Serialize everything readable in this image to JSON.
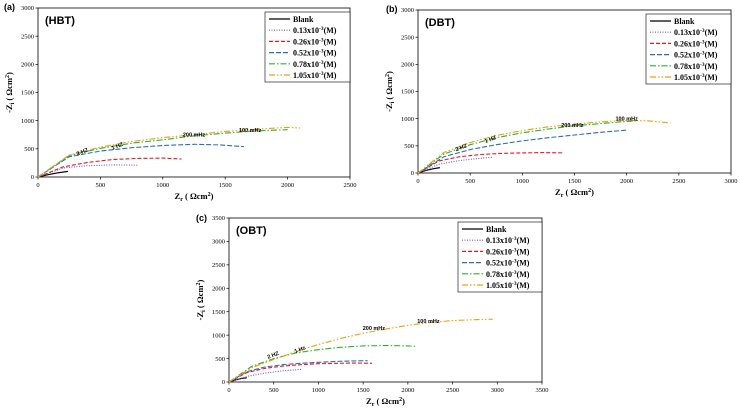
{
  "chart_data": [
    {
      "type": "line",
      "panel_label": "(a)",
      "title": "(HBT)",
      "xlabel": "Zr (Ωcm²)",
      "ylabel": "-Zi (Ωcm²)",
      "xlim": [
        0,
        2500
      ],
      "ylim": [
        0,
        3000
      ],
      "xticks": [
        "0",
        "500",
        "1000",
        "1500",
        "2000",
        "2500"
      ],
      "yticks": [
        "0",
        "500",
        "1000",
        "1500",
        "2000",
        "2500",
        "3000"
      ],
      "annotations": [
        {
          "text": "2 HZ",
          "x": 360,
          "y": 420
        },
        {
          "text": "1 HZ",
          "x": 640,
          "y": 520
        },
        {
          "text": "200 mHz",
          "x": 1250,
          "y": 720
        },
        {
          "text": "100 mHz",
          "x": 1700,
          "y": 800
        }
      ],
      "series": [
        {
          "name": "Blank",
          "color": "#000000",
          "dash": "",
          "points": [
            [
              0,
              0
            ],
            [
              80,
              40
            ],
            [
              160,
              75
            ],
            [
              240,
              100
            ]
          ]
        },
        {
          "name": "0.13x10-3 (M)",
          "color": "#6a5acd",
          "dash": "1,1.5",
          "points": [
            [
              0,
              0
            ],
            [
              200,
              160
            ],
            [
              400,
              200
            ],
            [
              600,
              215
            ],
            [
              800,
              210
            ]
          ]
        },
        {
          "name": "0.26x10-3 (M)",
          "color": "#e01b24",
          "dash": "4,2",
          "points": [
            [
              0,
              0
            ],
            [
              200,
              180
            ],
            [
              400,
              260
            ],
            [
              600,
              310
            ],
            [
              800,
              330
            ],
            [
              1000,
              335
            ],
            [
              1150,
              320
            ]
          ]
        },
        {
          "name": "0.52x10-3 (M)",
          "color": "#2e6db4",
          "dash": "5,2",
          "points": [
            [
              0,
              0
            ],
            [
              250,
              360
            ],
            [
              500,
              460
            ],
            [
              750,
              520
            ],
            [
              1000,
              560
            ],
            [
              1250,
              580
            ],
            [
              1450,
              570
            ],
            [
              1650,
              540
            ]
          ]
        },
        {
          "name": "0.78x10-3 (M)",
          "color": "#2bb32b",
          "dash": "6,2,1.5,2",
          "points": [
            [
              0,
              0
            ],
            [
              250,
              380
            ],
            [
              500,
              510
            ],
            [
              750,
              600
            ],
            [
              1000,
              660
            ],
            [
              1250,
              730
            ],
            [
              1500,
              780
            ],
            [
              1750,
              820
            ],
            [
              2000,
              840
            ]
          ]
        },
        {
          "name": "1.05x10-3 (M)",
          "color": "#f39c12",
          "dash": "6,2,1.5,2,1.5,2",
          "points": [
            [
              0,
              0
            ],
            [
              250,
              390
            ],
            [
              500,
              530
            ],
            [
              750,
              630
            ],
            [
              1000,
              700
            ],
            [
              1250,
              750
            ],
            [
              1500,
              810
            ],
            [
              1750,
              850
            ],
            [
              2000,
              880
            ],
            [
              2100,
              870
            ]
          ]
        }
      ],
      "legend": {
        "entries": [
          "Blank",
          "0.13x10",
          "0.26x10",
          "0.52x10",
          "0.78x10",
          "1.05x10"
        ],
        "exp": "-3",
        "unit": "(M)"
      }
    },
    {
      "type": "line",
      "panel_label": "(b)",
      "title": "(DBT)",
      "xlabel": "Zr (Ωcm²)",
      "ylabel": "-Zi (Ωcm²)",
      "xlim": [
        0,
        3000
      ],
      "ylim": [
        0,
        3000
      ],
      "xticks": [
        "0",
        "500",
        "1000",
        "1500",
        "2000",
        "2500",
        "3000"
      ],
      "yticks": [
        "0",
        "500",
        "1000",
        "1500",
        "2000",
        "2500",
        "3000"
      ],
      "annotations": [
        {
          "text": "2 HZ",
          "x": 420,
          "y": 440
        },
        {
          "text": "1 HZ",
          "x": 700,
          "y": 590
        },
        {
          "text": "200 mHz",
          "x": 1480,
          "y": 850
        },
        {
          "text": "100 mHz",
          "x": 2000,
          "y": 970
        }
      ],
      "series": [
        {
          "name": "Blank",
          "color": "#000000",
          "dash": "",
          "points": [
            [
              0,
              0
            ],
            [
              80,
              50
            ],
            [
              150,
              80
            ],
            [
              210,
              100
            ]
          ]
        },
        {
          "name": "0.13x10-3 (M)",
          "color": "#6a5acd",
          "dash": "1,1.5",
          "points": [
            [
              0,
              0
            ],
            [
              200,
              160
            ],
            [
              400,
              230
            ],
            [
              600,
              270
            ],
            [
              720,
              290
            ]
          ]
        },
        {
          "name": "0.26x10-3 (M)",
          "color": "#e01b24",
          "dash": "4,2",
          "points": [
            [
              0,
              0
            ],
            [
              200,
              220
            ],
            [
              400,
              300
            ],
            [
              600,
              340
            ],
            [
              800,
              360
            ],
            [
              1000,
              370
            ],
            [
              1200,
              375
            ],
            [
              1400,
              370
            ]
          ]
        },
        {
          "name": "0.52x10-3 (M)",
          "color": "#2e6db4",
          "dash": "5,2",
          "points": [
            [
              0,
              0
            ],
            [
              250,
              300
            ],
            [
              500,
              430
            ],
            [
              750,
              520
            ],
            [
              1000,
              590
            ],
            [
              1250,
              650
            ],
            [
              1500,
              700
            ],
            [
              1750,
              750
            ],
            [
              2000,
              790
            ]
          ]
        },
        {
          "name": "0.78x10-3 (M)",
          "color": "#2bb32b",
          "dash": "6,2,1.5,2",
          "points": [
            [
              0,
              0
            ],
            [
              250,
              350
            ],
            [
              500,
              520
            ],
            [
              750,
              650
            ],
            [
              1000,
              740
            ],
            [
              1250,
              810
            ],
            [
              1500,
              870
            ],
            [
              1750,
              910
            ],
            [
              2000,
              950
            ],
            [
              2100,
              960
            ]
          ]
        },
        {
          "name": "1.05x10-3 (M)",
          "color": "#f39c12",
          "dash": "6,2,1.5,2,1.5,2",
          "points": [
            [
              0,
              0
            ],
            [
              250,
              380
            ],
            [
              500,
              560
            ],
            [
              750,
              690
            ],
            [
              1000,
              780
            ],
            [
              1250,
              850
            ],
            [
              1500,
              900
            ],
            [
              1750,
              940
            ],
            [
              2000,
              970
            ],
            [
              2200,
              960
            ],
            [
              2420,
              920
            ]
          ]
        }
      ],
      "legend": {
        "entries": [
          "Blank",
          "0.13x10",
          "0.26x10",
          "0.52x10",
          "0.78x10",
          "1.05x10"
        ],
        "exp": "-3",
        "unit": "(M)"
      }
    },
    {
      "type": "line",
      "panel_label": "(c)",
      "title": "(OBT)",
      "xlabel": "Zr (Ωcm²)",
      "ylabel": "-Zi (Ωcm²)",
      "xlim": [
        0,
        3500
      ],
      "ylim": [
        0,
        3500
      ],
      "xticks": [
        "0",
        "500",
        "1000",
        "1500",
        "2000",
        "2500",
        "3000",
        "3500"
      ],
      "yticks": [
        "0",
        "500",
        "1000",
        "1500",
        "2000",
        "2500",
        "3000",
        "3500"
      ],
      "annotations": [
        {
          "text": "2 HZ",
          "x": 500,
          "y": 540
        },
        {
          "text": "1 Hz",
          "x": 800,
          "y": 660
        },
        {
          "text": "200 mHz",
          "x": 1620,
          "y": 1110
        },
        {
          "text": "100 mHz",
          "x": 2230,
          "y": 1260
        }
      ],
      "series": [
        {
          "name": "Blank",
          "color": "#000000",
          "dash": "",
          "points": [
            [
              0,
              0
            ],
            [
              80,
              50
            ],
            [
              150,
              80
            ],
            [
              200,
              90
            ]
          ]
        },
        {
          "name": "0.13x10-3 (M)",
          "color": "#6a5acd",
          "dash": "1,1.5",
          "points": [
            [
              0,
              0
            ],
            [
              200,
              120
            ],
            [
              400,
              190
            ],
            [
              600,
              240
            ],
            [
              820,
              270
            ]
          ]
        },
        {
          "name": "0.26x10-3 (M)",
          "color": "#e01b24",
          "dash": "4,2",
          "points": [
            [
              0,
              0
            ],
            [
              200,
              200
            ],
            [
              400,
              290
            ],
            [
              600,
              340
            ],
            [
              800,
              370
            ],
            [
              1000,
              390
            ],
            [
              1200,
              400
            ],
            [
              1400,
              405
            ],
            [
              1600,
              400
            ]
          ]
        },
        {
          "name": "0.52x10-3 (M)",
          "color": "#2e6db4",
          "dash": "5,2",
          "points": [
            [
              0,
              0
            ],
            [
              200,
              220
            ],
            [
              400,
              320
            ],
            [
              600,
              370
            ],
            [
              800,
              400
            ],
            [
              1000,
              420
            ],
            [
              1200,
              440
            ],
            [
              1400,
              450
            ],
            [
              1550,
              455
            ]
          ]
        },
        {
          "name": "0.78x10-3 (M)",
          "color": "#2bb32b",
          "dash": "6,2,1.5,2",
          "points": [
            [
              0,
              0
            ],
            [
              250,
              330
            ],
            [
              500,
              500
            ],
            [
              750,
              620
            ],
            [
              1000,
              690
            ],
            [
              1250,
              740
            ],
            [
              1500,
              770
            ],
            [
              1750,
              780
            ],
            [
              2000,
              770
            ],
            [
              2100,
              760
            ]
          ]
        },
        {
          "name": "1.05x10-3 (M)",
          "color": "#f39c12",
          "dash": "6,2,1.5,2,1.5,2",
          "points": [
            [
              0,
              0
            ],
            [
              250,
              300
            ],
            [
              500,
              480
            ],
            [
              750,
              650
            ],
            [
              1000,
              800
            ],
            [
              1250,
              930
            ],
            [
              1500,
              1040
            ],
            [
              1750,
              1130
            ],
            [
              2000,
              1210
            ],
            [
              2250,
              1270
            ],
            [
              2500,
              1310
            ],
            [
              2750,
              1330
            ],
            [
              2950,
              1340
            ]
          ]
        }
      ],
      "legend": {
        "entries": [
          "Blank",
          "0.13x10",
          "0.26x10",
          "0.52x10",
          "0.78x10",
          "1.05x10"
        ],
        "exp": "-3",
        "unit": "(M)"
      }
    }
  ]
}
